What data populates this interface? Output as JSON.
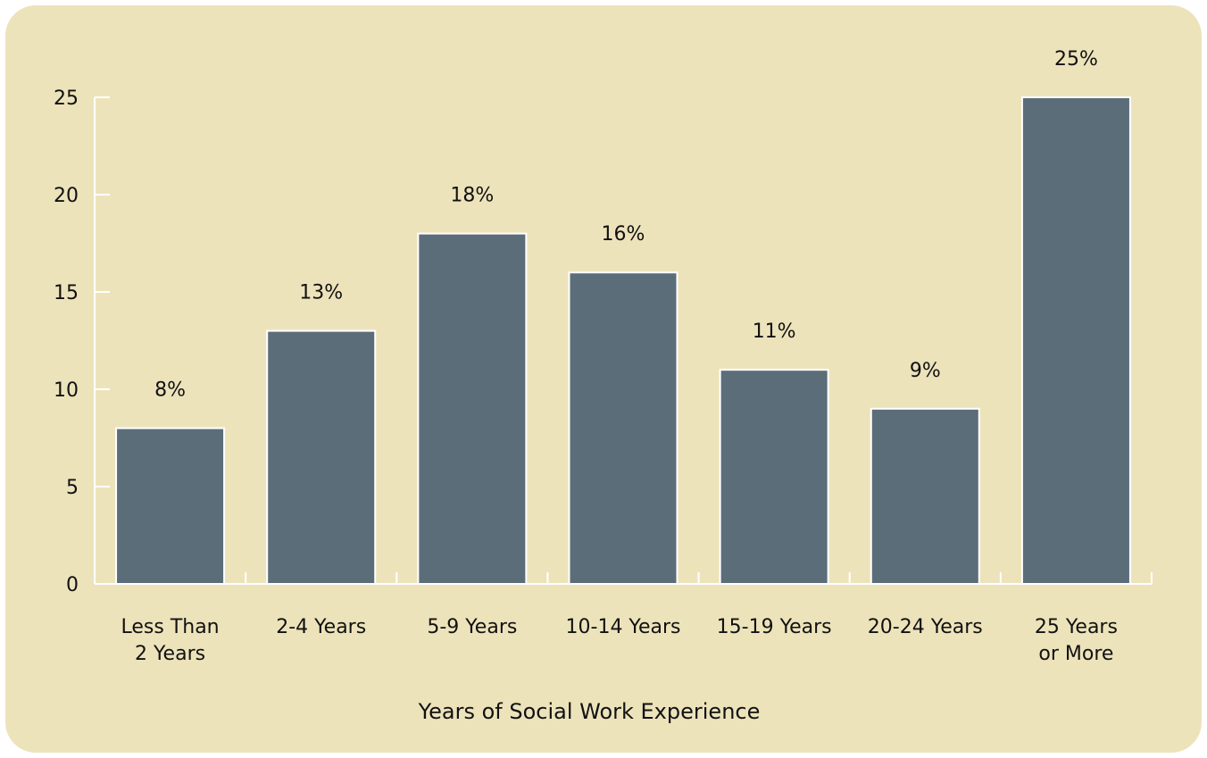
{
  "chart_data": {
    "type": "bar",
    "categories": [
      [
        "Less Than",
        "2 Years"
      ],
      [
        "2-4 Years"
      ],
      [
        "5-9 Years"
      ],
      [
        "10-14 Years"
      ],
      [
        "15-19 Years"
      ],
      [
        "20-24 Years"
      ],
      [
        "25 Years",
        "or More"
      ]
    ],
    "values": [
      8,
      13,
      18,
      16,
      11,
      9,
      25
    ],
    "value_labels": [
      "8%",
      "13%",
      "18%",
      "16%",
      "11%",
      "9%",
      "25%"
    ],
    "xlabel": "Years of Social Work Experience",
    "ylabel": "",
    "ylim": [
      0,
      25
    ],
    "yticks": [
      0,
      5,
      10,
      15,
      20,
      25
    ],
    "grid": false,
    "colors": {
      "background": "#ede3bb",
      "bar": "#5b6d79",
      "axis": "#ffffff"
    }
  }
}
